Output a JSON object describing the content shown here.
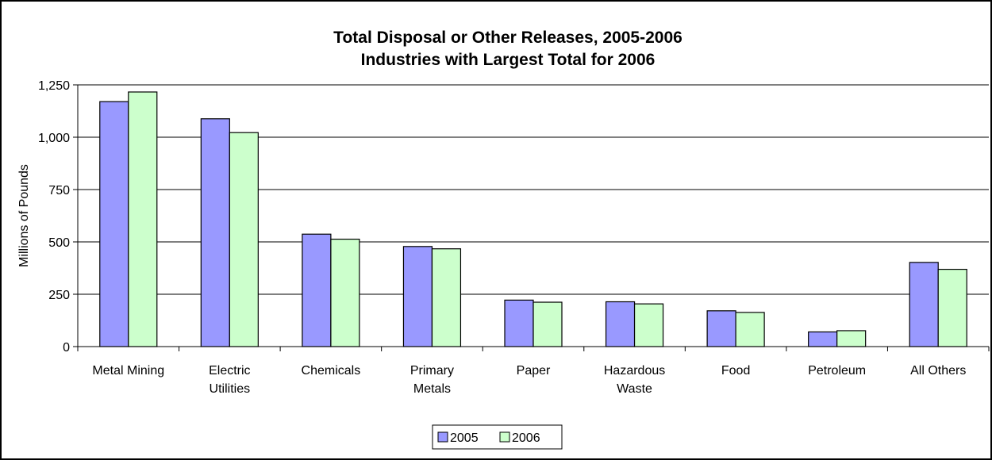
{
  "chart_data": {
    "type": "bar",
    "title": "Total Disposal or Other Releases, 2005-2006",
    "subtitle": "Industries with Largest Total for 2006",
    "ylabel": "Millions of Pounds",
    "xlabel": "",
    "ylim": [
      0,
      1250
    ],
    "yticks": [
      "0",
      "250",
      "500",
      "750",
      "1,000",
      "1,250"
    ],
    "ytick_values": [
      0,
      250,
      500,
      750,
      1000,
      1250
    ],
    "grid": true,
    "legend_position": "bottom",
    "categories": [
      [
        "Metal Mining"
      ],
      [
        "Electric",
        "Utilities"
      ],
      [
        "Chemicals"
      ],
      [
        "Primary",
        "Metals"
      ],
      [
        "Paper"
      ],
      [
        "Hazardous",
        "Waste"
      ],
      [
        "Food"
      ],
      [
        "Petroleum"
      ],
      [
        "All Others"
      ]
    ],
    "series": [
      {
        "name": "2005",
        "color": "#9999ff",
        "values": [
          1170,
          1088,
          537,
          478,
          222,
          214,
          171,
          70,
          402
        ]
      },
      {
        "name": "2006",
        "color": "#ccffcc",
        "values": [
          1216,
          1022,
          513,
          467,
          212,
          204,
          163,
          76,
          369
        ]
      }
    ]
  }
}
